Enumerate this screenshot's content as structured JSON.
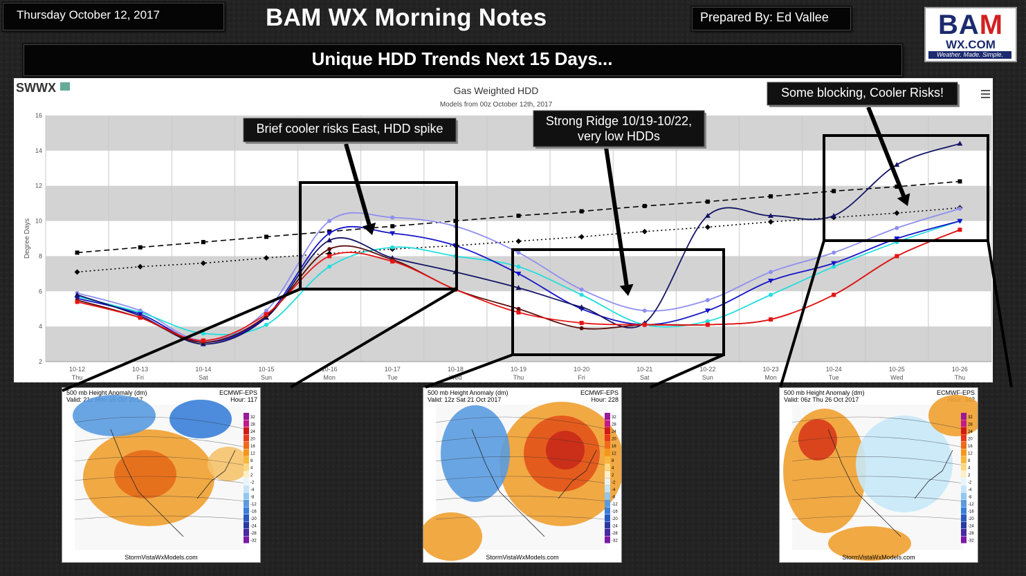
{
  "header": {
    "date": "Thursday October 12, 2017",
    "title": "BAM WX Morning Notes",
    "prepared_by": "Prepared By: Ed Vallee",
    "logo_main_a": "BA",
    "logo_main_b": "M",
    "logo_sub": "WX.COM",
    "logo_tagline": "Weather. Made. Simple."
  },
  "subtitle": "Unique HDD Trends Next 15 Days...",
  "chart_data": {
    "type": "line",
    "brand": "SWWX",
    "title": "Gas Weighted HDD",
    "subtitle": "Models from 00z October 12th, 2017",
    "ylabel": "Degree Days",
    "xlabel": "",
    "ylim": [
      2,
      16
    ],
    "yticks": [
      2,
      4,
      6,
      8,
      10,
      12,
      14,
      16
    ],
    "grid": "alternating-bands",
    "categories": [
      "10-12",
      "10-13",
      "10-14",
      "10-15",
      "10-16",
      "10-17",
      "10-18",
      "10-19",
      "10-20",
      "10-21",
      "10-22",
      "10-23",
      "10-24",
      "10-25",
      "10-26"
    ],
    "days": [
      "Thu",
      "Fri",
      "Sat",
      "Sun",
      "Mon",
      "Tue",
      "Wed",
      "Thu",
      "Fri",
      "Sat",
      "Sun",
      "Mon",
      "Tue",
      "Wed",
      "Thu"
    ],
    "series": [
      {
        "color": "#000000",
        "dash": "8,5",
        "marker": "square",
        "values": [
          8.2,
          8.5,
          8.8,
          9.1,
          9.4,
          9.7,
          10.0,
          10.3,
          10.55,
          10.85,
          11.1,
          11.4,
          11.7,
          11.95,
          12.25
        ]
      },
      {
        "color": "#000000",
        "dash": "2,4",
        "marker": "diamond",
        "values": [
          7.1,
          7.4,
          7.6,
          7.9,
          8.15,
          8.4,
          8.6,
          8.85,
          9.1,
          9.4,
          9.65,
          9.95,
          10.2,
          10.45,
          10.75
        ]
      },
      {
        "color": "#8e8ef0",
        "dash": "",
        "marker": "circle",
        "values": [
          5.9,
          4.9,
          3.2,
          4.9,
          10.0,
          10.2,
          9.7,
          8.2,
          6.1,
          4.9,
          5.5,
          7.1,
          8.2,
          9.6,
          10.7
        ]
      },
      {
        "color": "#22dddd",
        "dash": "",
        "marker": "circle",
        "values": [
          5.7,
          4.8,
          3.6,
          4.1,
          7.4,
          8.5,
          8.0,
          7.4,
          5.8,
          4.1,
          4.3,
          5.8,
          7.4,
          8.8,
          10.0
        ]
      },
      {
        "color": "#1414c8",
        "dash": "",
        "marker": "triangle-down",
        "values": [
          5.6,
          4.7,
          3.1,
          4.6,
          9.3,
          9.3,
          8.6,
          7.0,
          5.0,
          4.1,
          4.9,
          6.6,
          7.6,
          9.0,
          10.0
        ]
      },
      {
        "color": "#141466",
        "dash": "",
        "marker": "triangle-up",
        "values": [
          5.8,
          4.6,
          3.0,
          4.5,
          8.9,
          7.9,
          7.1,
          6.2,
          5.1,
          4.2,
          10.3,
          10.3,
          10.3,
          13.2,
          14.4
        ]
      },
      {
        "color": "#5a0d0d",
        "dash": "",
        "marker": "circle",
        "values": [
          5.5,
          4.5,
          3.1,
          4.6,
          8.4,
          7.8,
          6.1,
          5.0,
          3.9,
          4.1,
          4.1,
          4.4,
          5.8,
          8.0,
          9.5
        ]
      },
      {
        "color": "#e81414",
        "dash": "",
        "marker": "square",
        "values": [
          5.4,
          4.5,
          3.2,
          4.7,
          8.0,
          7.7,
          6.1,
          4.8,
          4.2,
          4.1,
          4.1,
          4.4,
          5.8,
          8.0,
          9.5
        ]
      }
    ],
    "annotations": [
      "Brief cooler risks East, HDD spike",
      "Strong Ridge 10/19-10/22,",
      "very low HDDs",
      "Some blocking, Cooler Risks!"
    ]
  },
  "maps": [
    {
      "line1": "500 mb Height Anomaly (dm)",
      "line2": "Valid: 21z Mon 16 Oct 2017",
      "model": "ECMWF-EPS",
      "hour": "Hour: 117",
      "footer": "StormVistaWxModels.com"
    },
    {
      "line1": "500 mb Height Anomaly (dm)",
      "line2": "Valid: 12z Sat 21 Oct 2017",
      "model": "ECMWF-EPS",
      "hour": "Hour: 228",
      "footer": "StormVistaWxModels.com"
    },
    {
      "line1": "500 mb Height Anomaly (dm)",
      "line2": "Valid: 06z Thu 26 Oct 2017",
      "model": "ECMWF-EPS",
      "hour": "Hour: 342",
      "footer": "StormVistaWxModels.com"
    }
  ],
  "colorbar": [
    "32",
    "28",
    "24",
    "20",
    "16",
    "12",
    "8",
    "4",
    "2",
    "-2",
    "-4",
    "-8",
    "-12",
    "-16",
    "-20",
    "-24",
    "-28",
    "-32"
  ],
  "colors": {
    "ridge": "#e8891a",
    "trough": "#3a7fd8",
    "box": "#000000"
  }
}
